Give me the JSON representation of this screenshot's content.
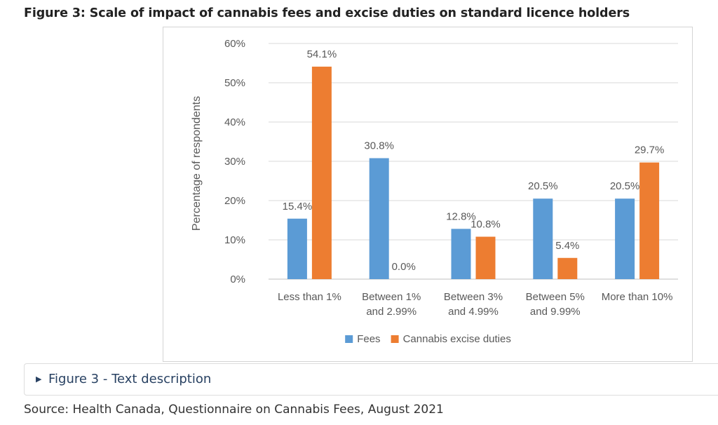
{
  "figure": {
    "title": "Figure 3: Scale of impact of cannabis fees and excise duties on standard licence holders"
  },
  "chart_data": {
    "type": "bar",
    "title": "",
    "xlabel": "",
    "ylabel": "Percentage of respondents",
    "ylim": [
      0,
      60
    ],
    "yticks": [
      "0%",
      "10%",
      "20%",
      "30%",
      "40%",
      "50%",
      "60%"
    ],
    "grid": true,
    "legend": "bottom",
    "categories": [
      [
        "Less than 1%"
      ],
      [
        "Between 1%",
        "and 2.99%"
      ],
      [
        "Between 3%",
        "and 4.99%"
      ],
      [
        "Between 5%",
        "and 9.99%"
      ],
      [
        "More than 10%"
      ]
    ],
    "series": [
      {
        "name": "Fees",
        "color": "#5b9bd5",
        "values": [
          15.4,
          30.8,
          12.8,
          20.5,
          20.5
        ],
        "labels": [
          "15.4%",
          "30.8%",
          "12.8%",
          "20.5%",
          "20.5%"
        ]
      },
      {
        "name": "Cannabis excise duties",
        "color": "#ed7d31",
        "values": [
          54.1,
          0.0,
          10.8,
          5.4,
          29.7
        ],
        "labels": [
          "54.1%",
          "0.0%",
          "10.8%",
          "5.4%",
          "29.7%"
        ]
      }
    ]
  },
  "details": {
    "label": "Figure 3 - Text description"
  },
  "source": {
    "text": "Source: Health Canada, Questionnaire on Cannabis Fees, August 2021"
  }
}
